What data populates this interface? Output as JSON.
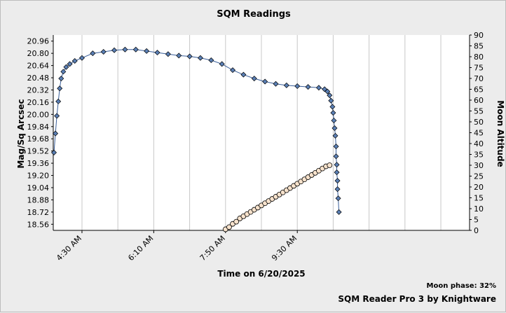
{
  "app": {
    "moon_phase": "Moon phase: 32%",
    "credit": "SQM Reader Pro 3 by Knightware"
  },
  "chart_data": {
    "type": "scatter",
    "title": "SQM Readings",
    "xlabel": "Time on 6/20/2025",
    "ylabel": "Mag/Sq Arcsec",
    "y2label": "Moon Altitude",
    "x_ticks": [
      "4:30 AM",
      "6:10 AM",
      "7:50 AM",
      "9:30 AM"
    ],
    "y_ticks": [
      "20.96",
      "20.80",
      "20.64",
      "20.48",
      "20.32",
      "20.16",
      "20.00",
      "19.84",
      "19.68",
      "19.52",
      "19.36",
      "19.20",
      "19.04",
      "18.88",
      "18.72",
      "18.56"
    ],
    "y2_ticks": [
      "90",
      "85",
      "80",
      "75",
      "70",
      "65",
      "60",
      "55",
      "50",
      "45",
      "40",
      "35",
      "30",
      "25",
      "20",
      "15",
      "10",
      "5",
      "0"
    ],
    "xlim": [
      "3:50 AM",
      "1:30 PM"
    ],
    "ylim": [
      18.48,
      21.04
    ],
    "y2lim": [
      0,
      90
    ],
    "grid": true,
    "colors": {
      "sqm": "#5a7fb5",
      "sqm_line": "#3a5f9a",
      "moon": "#f7e2cc",
      "marker_edge": "#000000",
      "plot_bg": "#ffffff",
      "grid": "#c8c8c8"
    },
    "series": [
      {
        "axis": "left",
        "values": [
          [
            "3:51 AM",
            19.5
          ],
          [
            "3:53 AM",
            19.75
          ],
          [
            "3:55 AM",
            19.98
          ],
          [
            "3:57 AM",
            20.17
          ],
          [
            "3:59 AM",
            20.34
          ],
          [
            "4:01 AM",
            20.47
          ],
          [
            "4:04 AM",
            20.56
          ],
          [
            "4:08 AM",
            20.62
          ],
          [
            "4:13 AM",
            20.66
          ],
          [
            "4:20 AM",
            20.7
          ],
          [
            "4:30 AM",
            20.74
          ],
          [
            "4:45 AM",
            20.8
          ],
          [
            "5:00 AM",
            20.82
          ],
          [
            "5:15 AM",
            20.84
          ],
          [
            "5:30 AM",
            20.85
          ],
          [
            "5:45 AM",
            20.85
          ],
          [
            "6:00 AM",
            20.83
          ],
          [
            "6:15 AM",
            20.81
          ],
          [
            "6:30 AM",
            20.79
          ],
          [
            "6:45 AM",
            20.77
          ],
          [
            "7:00 AM",
            20.76
          ],
          [
            "7:15 AM",
            20.74
          ],
          [
            "7:30 AM",
            20.71
          ],
          [
            "7:45 AM",
            20.66
          ],
          [
            "8:00 AM",
            20.58
          ],
          [
            "8:15 AM",
            20.52
          ],
          [
            "8:30 AM",
            20.47
          ],
          [
            "8:45 AM",
            20.43
          ],
          [
            "9:00 AM",
            20.4
          ],
          [
            "9:15 AM",
            20.38
          ],
          [
            "9:30 AM",
            20.37
          ],
          [
            "9:45 AM",
            20.36
          ],
          [
            "10:00 AM",
            20.35
          ],
          [
            "10:08 AM",
            20.33
          ],
          [
            "10:12 AM",
            20.3
          ],
          [
            "10:15 AM",
            20.25
          ],
          [
            "10:17 AM",
            20.18
          ],
          [
            "10:19 AM",
            20.1
          ],
          [
            "10:20 AM",
            20.02
          ],
          [
            "10:21 AM",
            19.92
          ],
          [
            "10:22 AM",
            19.82
          ],
          [
            "10:23 AM",
            19.72
          ],
          [
            "10:24 AM",
            19.58
          ],
          [
            "10:24 AM",
            19.45
          ],
          [
            "10:25 AM",
            19.34
          ],
          [
            "10:25 AM",
            19.24
          ],
          [
            "10:26 AM",
            19.13
          ],
          [
            "10:26 AM",
            19.02
          ],
          [
            "10:27 AM",
            18.9
          ],
          [
            "10:28 AM",
            18.72
          ]
        ]
      },
      {
        "axis": "right",
        "values": [
          [
            "7:50 AM",
            0.5
          ],
          [
            "7:55 AM",
            1.5
          ],
          [
            "8:00 AM",
            3
          ],
          [
            "8:05 AM",
            4
          ],
          [
            "8:10 AM",
            5.5
          ],
          [
            "8:15 AM",
            6.5
          ],
          [
            "8:20 AM",
            7.5
          ],
          [
            "8:25 AM",
            8.5
          ],
          [
            "8:30 AM",
            9.5
          ],
          [
            "8:35 AM",
            10.5
          ],
          [
            "8:40 AM",
            11.5
          ],
          [
            "8:45 AM",
            12.5
          ],
          [
            "8:50 AM",
            13.5
          ],
          [
            "8:55 AM",
            14.5
          ],
          [
            "9:00 AM",
            15.5
          ],
          [
            "9:05 AM",
            16.5
          ],
          [
            "9:10 AM",
            17.5
          ],
          [
            "9:15 AM",
            18.5
          ],
          [
            "9:20 AM",
            19.5
          ],
          [
            "9:25 AM",
            20.5
          ],
          [
            "9:30 AM",
            21.5
          ],
          [
            "9:35 AM",
            22.5
          ],
          [
            "9:40 AM",
            23.5
          ],
          [
            "9:45 AM",
            24.5
          ],
          [
            "9:50 AM",
            25.5
          ],
          [
            "9:55 AM",
            26.5
          ],
          [
            "10:00 AM",
            27.5
          ],
          [
            "10:05 AM",
            28.5
          ],
          [
            "10:10 AM",
            29.5
          ],
          [
            "10:15 AM",
            30
          ]
        ]
      }
    ]
  }
}
